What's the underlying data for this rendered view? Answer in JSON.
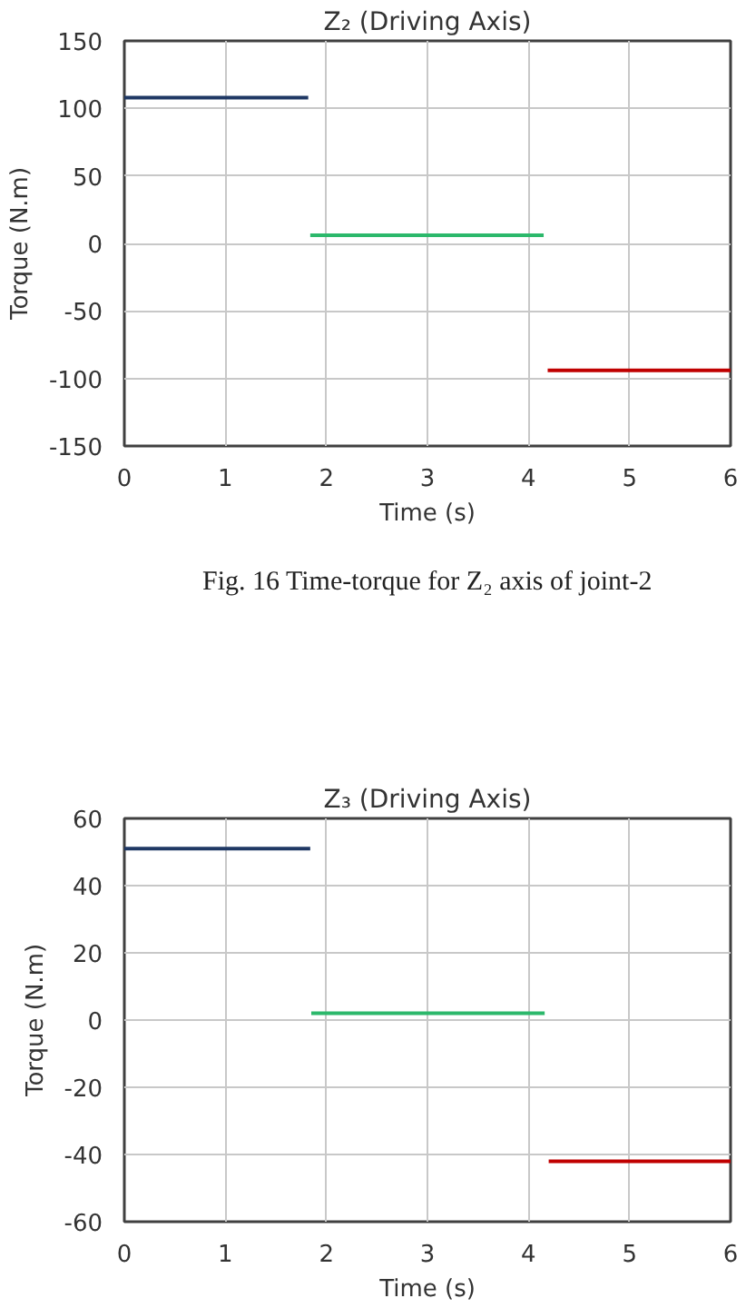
{
  "chart_data": [
    {
      "type": "line",
      "title": "Z₂ (Driving Axis)",
      "xlabel": "Time (s)",
      "ylabel": "Torque (N.m)",
      "annotations": [
        "Fig. 16 Time-torque for Z₂ axis of joint-2"
      ],
      "xlim": [
        0,
        6
      ],
      "ylim": [
        -150,
        150
      ],
      "xticks": [
        0,
        1,
        2,
        3,
        4,
        5,
        6
      ],
      "yticks": [
        -150,
        -100,
        -50,
        0,
        50,
        100,
        150
      ],
      "grid": true,
      "line_style": "solid",
      "series": [
        {
          "color": "#1f3864",
          "x": [
            0,
            1.82
          ],
          "values": [
            108,
            108
          ]
        },
        {
          "color": "#2cb86b",
          "x": [
            1.84,
            4.15
          ],
          "values": [
            6,
            6
          ]
        },
        {
          "color": "#c00000",
          "x": [
            4.19,
            6
          ],
          "values": [
            -94,
            -94
          ]
        }
      ]
    },
    {
      "type": "line",
      "title": "Z₃ (Driving Axis)",
      "xlabel": "Time (s)",
      "ylabel": "Torque (N.m)",
      "xlim": [
        0,
        6
      ],
      "ylim": [
        -60,
        60
      ],
      "xticks": [
        0,
        1,
        2,
        3,
        4,
        5,
        6
      ],
      "yticks": [
        -60,
        -40,
        -20,
        0,
        20,
        40,
        60
      ],
      "grid": true,
      "line_style": "solid",
      "series": [
        {
          "color": "#1f3864",
          "x": [
            0,
            1.84
          ],
          "values": [
            51,
            51
          ]
        },
        {
          "color": "#2cb86b",
          "x": [
            1.85,
            4.16
          ],
          "values": [
            2,
            2
          ]
        },
        {
          "color": "#c00000",
          "x": [
            4.2,
            6
          ],
          "values": [
            -42,
            -42
          ]
        }
      ]
    }
  ]
}
